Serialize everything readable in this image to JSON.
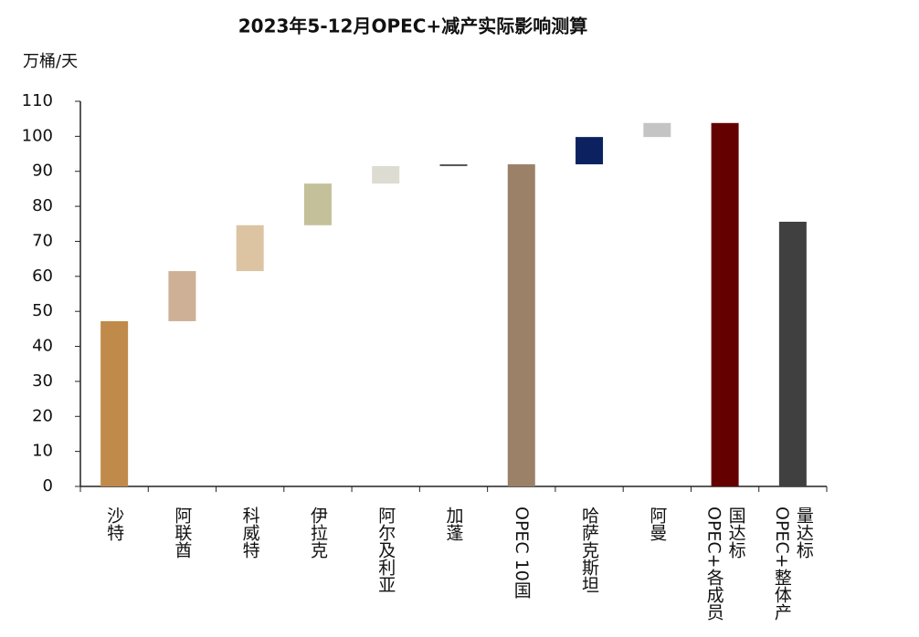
{
  "chart_data": {
    "type": "waterfall",
    "title": "2023年5-12月OPEC+减产实际影响测算",
    "y_label": "万桶/天",
    "categories": [
      "沙特",
      "阿联酋",
      "科威特",
      "伊拉克",
      "阿尔及利亚",
      "加蓬",
      "OPEC 10国",
      "哈萨克斯坦",
      "阿曼",
      "OPEC+各成员国达标",
      "OPEC+整体产量达标"
    ],
    "values": [
      47.2,
      14.3,
      13.1,
      11.9,
      5.0,
      0.5,
      92.0,
      7.8,
      4.0,
      103.8,
      75.6
    ],
    "is_total": [
      false,
      false,
      false,
      false,
      false,
      false,
      true,
      false,
      false,
      true,
      true
    ],
    "colors": [
      "#c08a4a",
      "#cdb096",
      "#dcc4a2",
      "#c4c09a",
      "#dcdcd2",
      "#555555",
      "#9a8168",
      "#0c2260",
      "#c4c4c4",
      "#650000",
      "#404040"
    ],
    "ylim": [
      0,
      110
    ],
    "yticks": [
      0,
      10,
      20,
      30,
      40,
      50,
      60,
      70,
      80,
      90,
      100,
      110
    ],
    "grid": false
  }
}
